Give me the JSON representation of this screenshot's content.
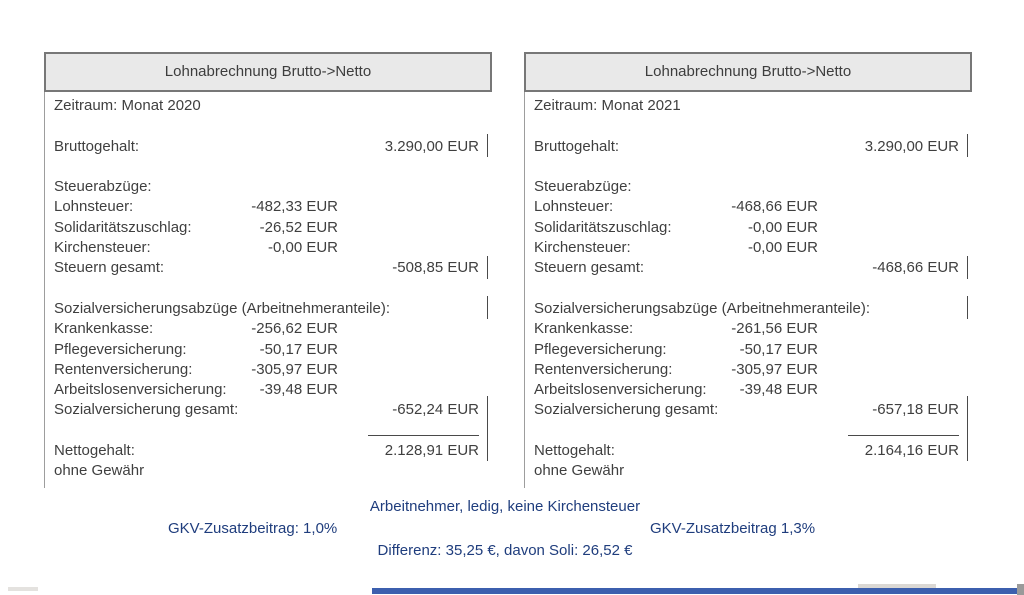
{
  "panels": [
    {
      "title": "Lohnabrechnung Brutto->Netto",
      "period": "Zeitraum: Monat 2020",
      "gross_label": "Bruttogehalt:",
      "gross_value": "3.290,00 EUR",
      "tax_section_label": "Steuerabzüge:",
      "tax_rows": [
        {
          "label": "Lohnsteuer:",
          "value": "-482,33 EUR"
        },
        {
          "label": "Solidaritätszuschlag:",
          "value": "-26,52 EUR"
        },
        {
          "label": "Kirchensteuer:",
          "value": "-0,00 EUR"
        }
      ],
      "tax_total_label": "Steuern gesamt:",
      "tax_total_value": "-508,85 EUR",
      "social_section_label": "Sozialversicherungsabzüge (Arbeitnehmeranteile):",
      "social_rows": [
        {
          "label": "Krankenkasse:",
          "value": "-256,62 EUR"
        },
        {
          "label": "Pflegeversicherung:",
          "value": "-50,17 EUR"
        },
        {
          "label": "Rentenversicherung:",
          "value": "-305,97 EUR"
        },
        {
          "label": "Arbeitslosenversicherung:",
          "value": "-39,48 EUR"
        }
      ],
      "social_total_label": "Sozialversicherung gesamt:",
      "social_total_value": "-652,24 EUR",
      "net_label": "Nettogehalt:",
      "net_value": "2.128,91 EUR",
      "disclaimer": "ohne Gewähr"
    },
    {
      "title": "Lohnabrechnung Brutto->Netto",
      "period": "Zeitraum: Monat 2021",
      "gross_label": "Bruttogehalt:",
      "gross_value": "3.290,00 EUR",
      "tax_section_label": "Steuerabzüge:",
      "tax_rows": [
        {
          "label": "Lohnsteuer:",
          "value": "-468,66 EUR"
        },
        {
          "label": "Solidaritätszuschlag:",
          "value": "-0,00 EUR"
        },
        {
          "label": "Kirchensteuer:",
          "value": "-0,00 EUR"
        }
      ],
      "tax_total_label": "Steuern gesamt:",
      "tax_total_value": "-468,66 EUR",
      "social_section_label": "Sozialversicherungsabzüge (Arbeitnehmeranteile):",
      "social_rows": [
        {
          "label": "Krankenkasse:",
          "value": "-261,56 EUR"
        },
        {
          "label": "Pflegeversicherung:",
          "value": "-50,17 EUR"
        },
        {
          "label": "Rentenversicherung:",
          "value": "-305,97 EUR"
        },
        {
          "label": "Arbeitslosenversicherung:",
          "value": "-39,48 EUR"
        }
      ],
      "social_total_label": "Sozialversicherung gesamt:",
      "social_total_value": "-657,18 EUR",
      "net_label": "Nettogehalt:",
      "net_value": "2.164,16 EUR",
      "disclaimer": "ohne Gewähr"
    }
  ],
  "footer": {
    "line1": "Arbeitnehmer, ledig, keine Kirchensteuer",
    "line2_left": "GKV-Zusatzbeitrag: 1,0%",
    "line2_right": "GKV-Zusatzbeitrag 1,3%",
    "line3": "Differenz: 35,25 €, davon Soli: 26,52 €"
  },
  "colors": {
    "header_background": "#e9e9e9",
    "header_border": "#777777",
    "body_text": "#3f3f3f",
    "footer_text": "#1f3d7d",
    "progress_bar_blue": "#3c5fae"
  }
}
